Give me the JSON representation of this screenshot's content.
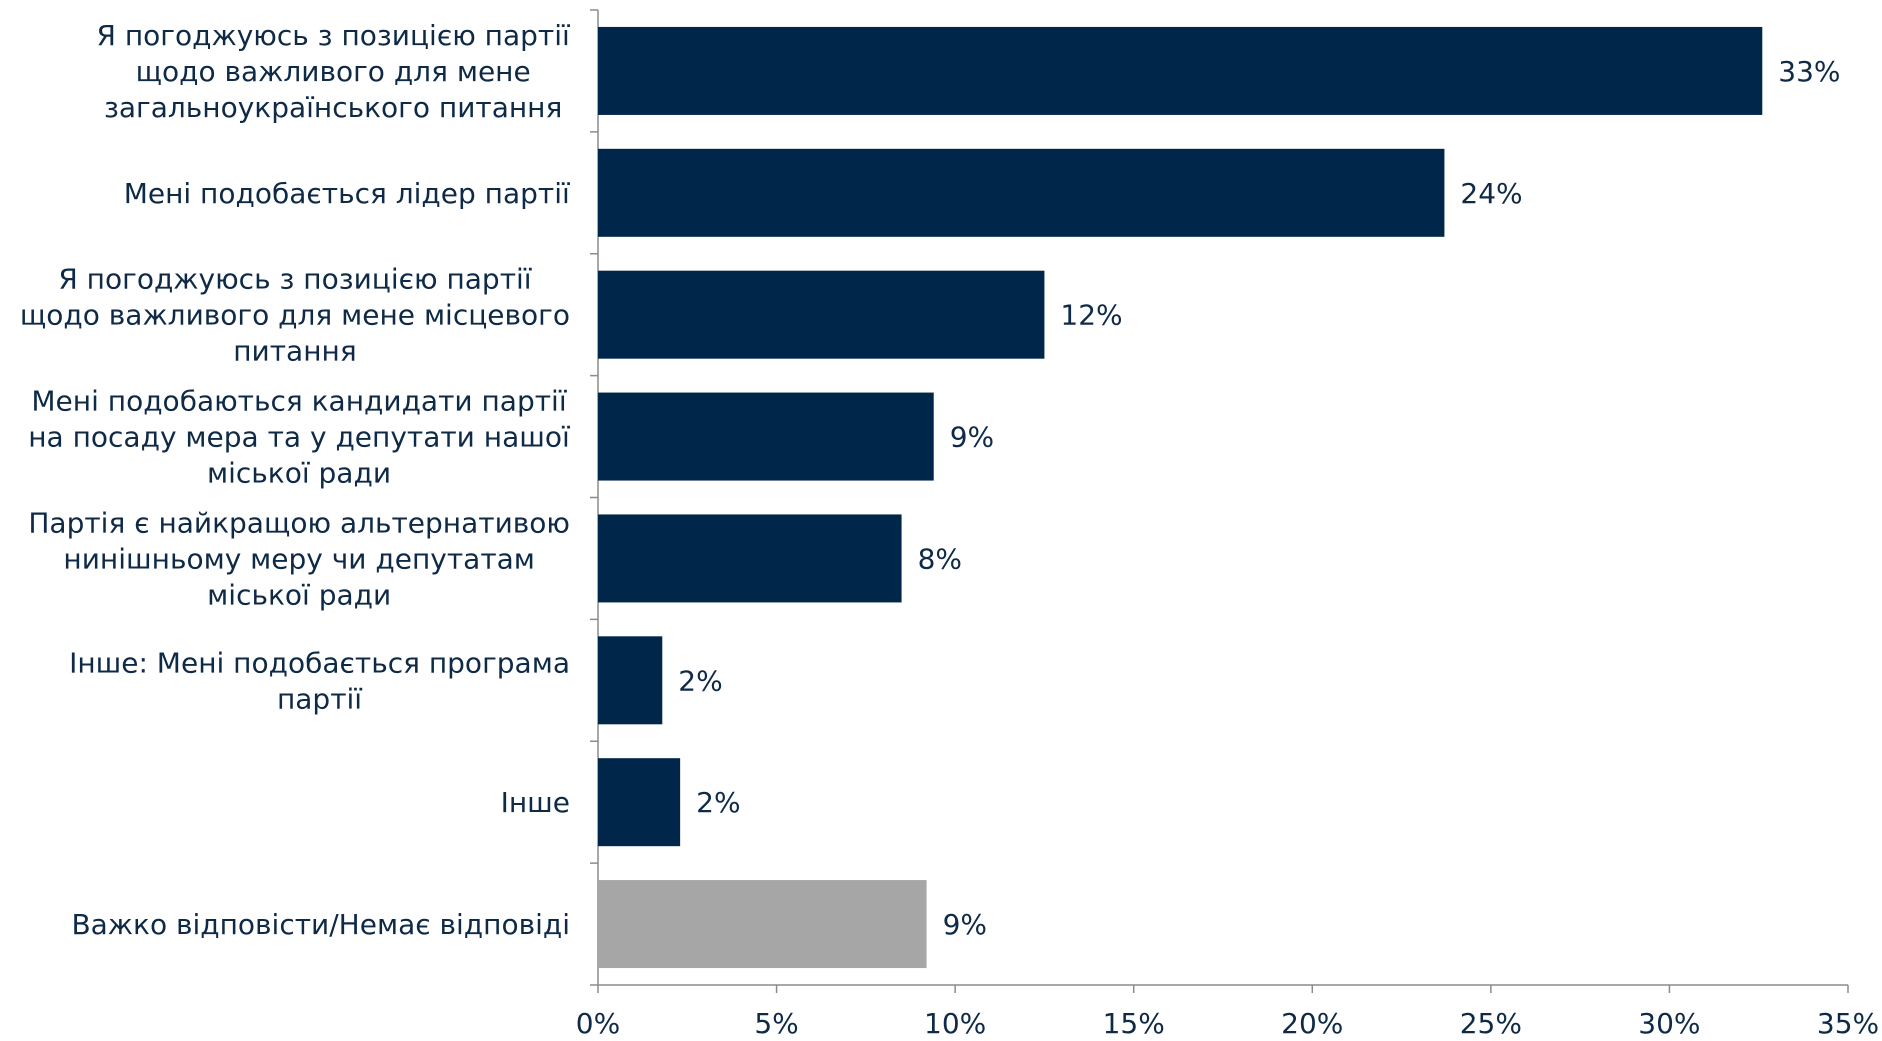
{
  "chart_data": {
    "type": "bar",
    "orientation": "horizontal",
    "categories": [
      "Я погоджуюсь з позицією партії щодо важливого для мене загальноукраїнського питання",
      "Мені подобається лідер партії",
      "Я погоджуюсь з позицією партії щодо важливого для мене місцевого питання",
      "Мені подобаються кандидати партії на посаду мера та у депутати нашої міської ради",
      "Партія є найкращою альтернативою нинішньому меру чи депутатам міської ради",
      "Інше: Мені подобається програма партії",
      "Інше",
      "Важко відповісти/Немає відповіді"
    ],
    "category_lines": [
      [
        "Я погоджуюсь з позицією партії",
        "щодо важливого для мене",
        "загальноукраїнського питання"
      ],
      [
        "Мені подобається лідер партії"
      ],
      [
        "Я погоджуюсь з позицією партії",
        "щодо важливого для мене місцевого",
        "питання"
      ],
      [
        "Мені подобаються кандидати партії",
        "на посаду мера та у депутати нашої",
        "міської ради"
      ],
      [
        "Партія є найкращою альтернативою",
        "нинішньому меру чи депутатам",
        "міської ради"
      ],
      [
        "Інше: Мені подобається програма",
        "партії"
      ],
      [
        "Інше"
      ],
      [
        "Важко відповісти/Немає відповіді"
      ]
    ],
    "values": [
      32.6,
      23.7,
      12.5,
      9.4,
      8.5,
      1.8,
      2.3,
      9.2
    ],
    "value_labels": [
      "33%",
      "24%",
      "12%",
      "9%",
      "8%",
      "2%",
      "2%",
      "9%"
    ],
    "bar_colors": [
      "#00264a",
      "#00264a",
      "#00264a",
      "#00264a",
      "#00264a",
      "#00264a",
      "#00264a",
      "#a6a6a6"
    ],
    "xlim": [
      0,
      35
    ],
    "x_ticks": [
      0,
      5,
      10,
      15,
      20,
      25,
      30,
      35
    ],
    "x_tick_labels": [
      "0%",
      "5%",
      "10%",
      "15%",
      "20%",
      "25%",
      "30%",
      "35%"
    ],
    "title": "",
    "xlabel": "",
    "ylabel": "",
    "grid": false,
    "legend": "none"
  }
}
